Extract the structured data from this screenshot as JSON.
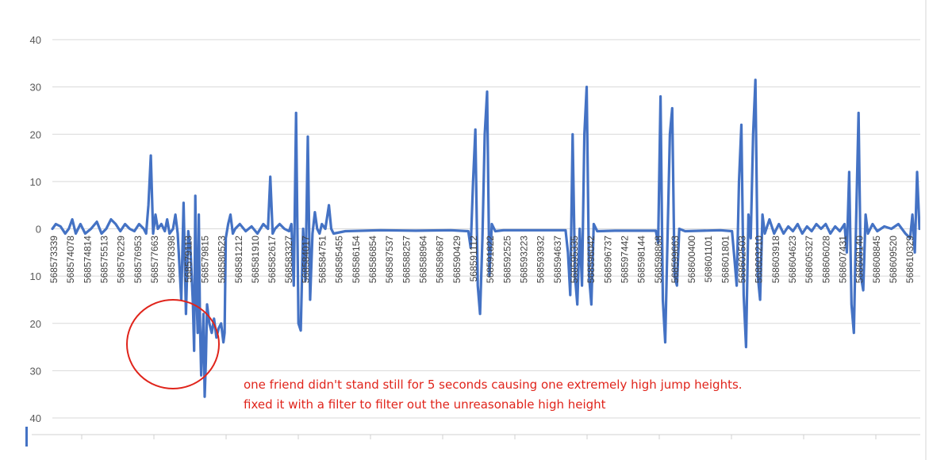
{
  "chart_data": {
    "type": "line",
    "y_tick_labels": [
      "40",
      "30",
      "20",
      "10",
      "0",
      "10",
      "20",
      "30",
      "40"
    ],
    "ylim": [
      -40,
      40
    ],
    "grid": true,
    "series_color": "#4472c4",
    "x_tick_labels": [
      "568573339",
      "568574078",
      "568574814",
      "568575513",
      "568576229",
      "568576953",
      "568577663",
      "568578398",
      "568579113",
      "568579815",
      "568580523",
      "568581212",
      "568581910",
      "568582617",
      "568583327",
      "568584017",
      "568584751",
      "568585455",
      "568586154",
      "568586854",
      "568587537",
      "568588257",
      "568588964",
      "568589687",
      "568590429",
      "568591112",
      "568591822",
      "568592525",
      "568593223",
      "568593932",
      "568594637",
      "568595335",
      "568596042",
      "568596737",
      "568597442",
      "568598144",
      "568598868",
      "568599663",
      "568600400",
      "568601101",
      "568601801",
      "568602503",
      "568603210",
      "568603918",
      "568604623",
      "568605327",
      "568606028",
      "568607431",
      "568608140",
      "568608845",
      "568609520",
      "568610329"
    ],
    "series": [
      {
        "values_points": [
          [
            0,
            0
          ],
          [
            3,
            1
          ],
          [
            7,
            0.5
          ],
          [
            11,
            -1
          ],
          [
            14,
            0
          ],
          [
            17,
            2
          ],
          [
            20,
            -1
          ],
          [
            24,
            1
          ],
          [
            28,
            -1
          ],
          [
            33,
            0
          ],
          [
            38,
            1.5
          ],
          [
            42,
            -1
          ],
          [
            46,
            0
          ],
          [
            50,
            2
          ],
          [
            54,
            1
          ],
          [
            58,
            -0.5
          ],
          [
            62,
            1
          ],
          [
            66,
            0
          ],
          [
            70,
            -0.5
          ],
          [
            74,
            1
          ],
          [
            78,
            0
          ],
          [
            80,
            -1
          ],
          [
            82,
            5
          ],
          [
            84,
            15.5
          ],
          [
            86,
            -1
          ],
          [
            88,
            3
          ],
          [
            90,
            0
          ],
          [
            93,
            1
          ],
          [
            96,
            -0.5
          ],
          [
            98,
            2
          ],
          [
            100,
            -1
          ],
          [
            103,
            0
          ],
          [
            105,
            3
          ],
          [
            107,
            -1
          ],
          [
            110,
            -15
          ],
          [
            112,
            5.5
          ],
          [
            114,
            -18
          ],
          [
            116,
            -0.5
          ],
          [
            118,
            -5
          ],
          [
            120,
            -16
          ],
          [
            121,
            -25.8
          ],
          [
            122,
            7
          ],
          [
            123,
            -14
          ],
          [
            124,
            -22
          ],
          [
            125,
            3
          ],
          [
            126,
            -20
          ],
          [
            127,
            -31
          ],
          [
            128,
            -24
          ],
          [
            129,
            -18
          ],
          [
            130,
            -35.5
          ],
          [
            131,
            -28
          ],
          [
            132,
            -16
          ],
          [
            134,
            -20
          ],
          [
            136,
            -22
          ],
          [
            138,
            -19
          ],
          [
            140,
            -23
          ],
          [
            142,
            -21
          ],
          [
            144,
            -20
          ],
          [
            146,
            -24
          ],
          [
            147,
            -22
          ],
          [
            148,
            -2
          ],
          [
            150,
            1
          ],
          [
            152,
            3
          ],
          [
            154,
            -1
          ],
          [
            156,
            0
          ],
          [
            160,
            1
          ],
          [
            165,
            -0.5
          ],
          [
            170,
            0.5
          ],
          [
            175,
            -1
          ],
          [
            180,
            1
          ],
          [
            184,
            0
          ],
          [
            186,
            11
          ],
          [
            188,
            -1
          ],
          [
            190,
            0
          ],
          [
            194,
            1
          ],
          [
            198,
            0
          ],
          [
            202,
            -0.5
          ],
          [
            204,
            1
          ],
          [
            206,
            -12
          ],
          [
            208,
            24.5
          ],
          [
            210,
            -20
          ],
          [
            212,
            -21.5
          ],
          [
            214,
            0
          ],
          [
            216,
            -11
          ],
          [
            218,
            19.5
          ],
          [
            220,
            -15
          ],
          [
            222,
            -1
          ],
          [
            224,
            3.5
          ],
          [
            226,
            0
          ],
          [
            228,
            -1
          ],
          [
            230,
            1
          ],
          [
            233,
            0
          ],
          [
            236,
            5
          ],
          [
            238,
            0
          ],
          [
            240,
            -1
          ],
          [
            250,
            -0.5
          ],
          [
            280,
            -0.3
          ],
          [
            310,
            -0.4
          ],
          [
            340,
            -0.3
          ],
          [
            355,
            -0.5
          ],
          [
            357,
            -4
          ],
          [
            359,
            10
          ],
          [
            361,
            21
          ],
          [
            363,
            -12
          ],
          [
            365,
            -18
          ],
          [
            367,
            -2
          ],
          [
            369,
            20
          ],
          [
            371,
            29
          ],
          [
            373,
            -10
          ],
          [
            375,
            1
          ],
          [
            378,
            -0.5
          ],
          [
            385,
            -0.3
          ],
          [
            420,
            -0.3
          ],
          [
            438,
            -0.3
          ],
          [
            440,
            -5
          ],
          [
            442,
            -14
          ],
          [
            444,
            20
          ],
          [
            446,
            -10
          ],
          [
            448,
            -16
          ],
          [
            450,
            0
          ],
          [
            452,
            -12
          ],
          [
            454,
            20
          ],
          [
            456,
            30
          ],
          [
            458,
            -10
          ],
          [
            460,
            -16
          ],
          [
            462,
            1
          ],
          [
            465,
            -0.5
          ],
          [
            480,
            -0.4
          ],
          [
            515,
            -0.4
          ],
          [
            517,
            -3
          ],
          [
            519,
            28
          ],
          [
            521,
            -15
          ],
          [
            523,
            -24
          ],
          [
            525,
            -2
          ],
          [
            527,
            20
          ],
          [
            529,
            25.5
          ],
          [
            531,
            -10
          ],
          [
            533,
            -12
          ],
          [
            535,
            0
          ],
          [
            540,
            -0.5
          ],
          [
            570,
            -0.3
          ],
          [
            580,
            -0.5
          ],
          [
            582,
            -6
          ],
          [
            584,
            -12
          ],
          [
            586,
            10
          ],
          [
            588,
            22
          ],
          [
            590,
            -14
          ],
          [
            592,
            -25
          ],
          [
            594,
            3
          ],
          [
            596,
            -2
          ],
          [
            598,
            20
          ],
          [
            600,
            31.5
          ],
          [
            602,
            -10
          ],
          [
            604,
            -15
          ],
          [
            606,
            3
          ],
          [
            608,
            -1
          ],
          [
            612,
            2
          ],
          [
            616,
            -1
          ],
          [
            620,
            1
          ],
          [
            624,
            -1
          ],
          [
            628,
            0.5
          ],
          [
            632,
            -0.5
          ],
          [
            636,
            1
          ],
          [
            640,
            -1
          ],
          [
            644,
            0.5
          ],
          [
            648,
            -0.5
          ],
          [
            652,
            1
          ],
          [
            656,
            0
          ],
          [
            660,
            1
          ],
          [
            664,
            -1
          ],
          [
            668,
            0.5
          ],
          [
            672,
            -0.5
          ],
          [
            676,
            1
          ],
          [
            678,
            -5
          ],
          [
            680,
            12
          ],
          [
            682,
            -16
          ],
          [
            684,
            -22
          ],
          [
            686,
            2
          ],
          [
            688,
            24.5
          ],
          [
            690,
            -10
          ],
          [
            692,
            -13
          ],
          [
            694,
            3
          ],
          [
            696,
            -1
          ],
          [
            700,
            1
          ],
          [
            704,
            -0.5
          ],
          [
            710,
            0.5
          ],
          [
            716,
            0
          ],
          [
            722,
            1
          ],
          [
            728,
            -1
          ],
          [
            732,
            -2
          ],
          [
            734,
            3
          ],
          [
            736,
            -5
          ],
          [
            738,
            12
          ],
          [
            740,
            0
          ]
        ]
      }
    ]
  },
  "annotation": {
    "lines": [
      "one friend didn't stand still for 5 seconds causing one extremely high jump heights.",
      "fixed it with a filter to filter out the unreasonable high height"
    ],
    "color": "#e0241b"
  }
}
